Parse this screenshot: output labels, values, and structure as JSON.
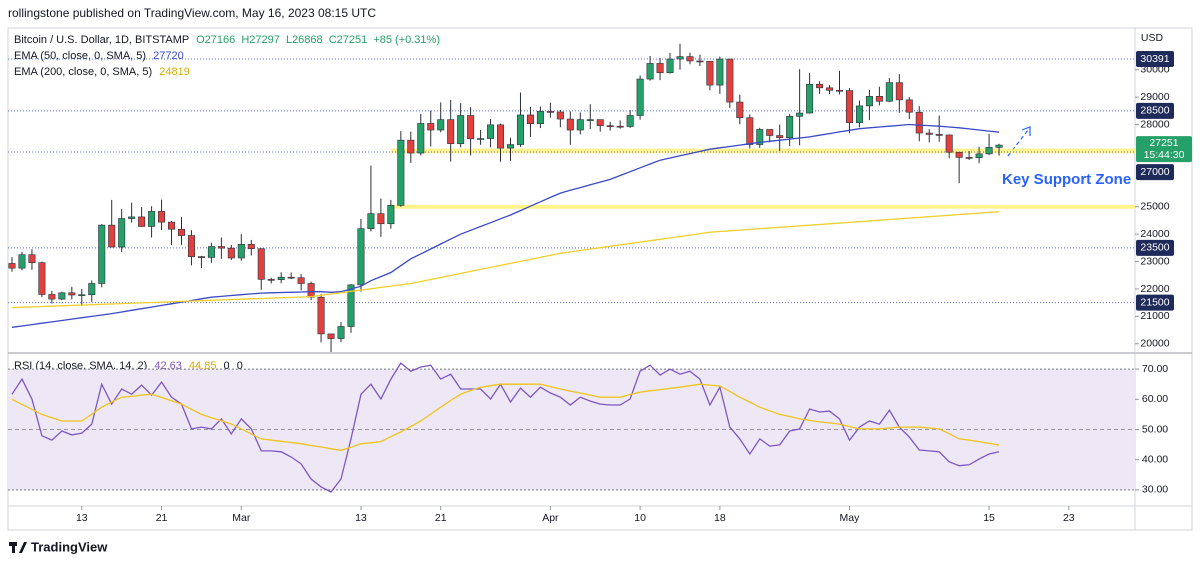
{
  "header": {
    "publisher": "rollingstone published on TradingView.com, May 16, 2023 08:15 UTC",
    "footer": "TradingView"
  },
  "chart_data": [
    {
      "type": "candlestick",
      "title": "Bitcoin / U.S. Dollar, 1D, BITSTAMP",
      "ohlc_labels": [
        "O27166",
        "H27297",
        "L26868",
        "C27251"
      ],
      "change": "+85 (+0.31%)",
      "currency": "USD",
      "annotation": "Key Support Zone",
      "time_to_close": "15:44:30",
      "up_color": "#26a069",
      "down_color": "#e0413f",
      "categories": [
        null,
        null,
        null,
        null,
        null,
        null,
        null,
        "13",
        null,
        null,
        null,
        null,
        null,
        null,
        null,
        "21",
        null,
        null,
        null,
        null,
        null,
        null,
        null,
        "Mar",
        null,
        null,
        null,
        null,
        null,
        null,
        null,
        null,
        null,
        null,
        null,
        "13",
        null,
        null,
        null,
        null,
        null,
        null,
        null,
        "21",
        null,
        null,
        null,
        null,
        null,
        null,
        null,
        null,
        null,
        null,
        "Apr",
        null,
        null,
        null,
        null,
        null,
        null,
        null,
        null,
        "10",
        null,
        null,
        null,
        null,
        null,
        null,
        null,
        "18",
        null,
        null,
        null,
        null,
        null,
        null,
        null,
        null,
        null,
        null,
        null,
        null,
        "May",
        null,
        null,
        null,
        null,
        null,
        null,
        null,
        null,
        null,
        null,
        null,
        null,
        null,
        "15",
        null,
        null,
        null,
        null,
        null,
        null,
        null,
        "23",
        null,
        null,
        null,
        null,
        null,
        null
      ],
      "open": [
        22930,
        22760,
        23250,
        22960,
        21800,
        21630,
        21860,
        21780,
        21790,
        22200,
        24330,
        23530,
        24570,
        24630,
        24280,
        24830,
        24440,
        24180,
        23950,
        23180,
        23150,
        23550,
        23490,
        23130,
        23630,
        23470,
        22350,
        22340,
        22430,
        22410,
        22200,
        21700,
        20360,
        20190,
        20630,
        22150,
        24200,
        24750,
        24380,
        25050,
        27430,
        26960,
        28040,
        27800,
        28180,
        27300,
        28330,
        27480,
        27490,
        27990,
        27140,
        27270,
        28350,
        28030,
        28480,
        28460,
        28200,
        27800,
        28180,
        28180,
        27960,
        27940,
        27930,
        28330,
        29660,
        30230,
        29890,
        30390,
        30480,
        30320,
        30310,
        29440,
        30390,
        28820,
        28250,
        27270,
        27820,
        27600,
        27520,
        28300,
        28420,
        29470,
        29340,
        29250,
        29240,
        28070,
        28680,
        29030,
        28850,
        29530,
        28900,
        28450,
        27690,
        27640,
        27620,
        26990,
        26800,
        26790,
        26930,
        27166,
        null,
        null,
        null,
        null,
        null,
        null,
        null,
        null,
        null,
        null,
        null,
        null,
        null
      ],
      "high": [
        23160,
        23350,
        23450,
        23000,
        21930,
        21900,
        22080,
        22000,
        22310,
        24370,
        25250,
        24920,
        25150,
        24990,
        25020,
        25260,
        24480,
        24620,
        24140,
        23210,
        23690,
        23880,
        23610,
        24000,
        23790,
        23480,
        22410,
        22610,
        22600,
        22540,
        22270,
        21820,
        20370,
        20790,
        22180,
        24560,
        26500,
        25300,
        25250,
        27760,
        27740,
        28390,
        28510,
        28810,
        28900,
        28780,
        28630,
        27800,
        28200,
        28030,
        27520,
        29170,
        28650,
        28660,
        28800,
        28530,
        28480,
        28440,
        28740,
        28180,
        28100,
        28150,
        28530,
        29790,
        30500,
        30430,
        30610,
        30950,
        30620,
        30550,
        30310,
        30480,
        30400,
        29090,
        28370,
        27880,
        27830,
        28000,
        28390,
        30020,
        29880,
        29580,
        29440,
        29960,
        29330,
        28880,
        29260,
        29380,
        29700,
        29840,
        29000,
        28670,
        27830,
        28330,
        27640,
        26990,
        27030,
        27190,
        27660,
        27297,
        null,
        null,
        null,
        null,
        null,
        null,
        null,
        null,
        null,
        null,
        null,
        null,
        null
      ],
      "low": [
        22630,
        22680,
        22700,
        21700,
        21470,
        21590,
        21620,
        21390,
        21530,
        22060,
        23520,
        23350,
        24420,
        24260,
        23880,
        24150,
        23600,
        23610,
        22860,
        22760,
        22960,
        23100,
        23060,
        23030,
        23220,
        21970,
        22200,
        22210,
        22360,
        21950,
        21590,
        20050,
        19570,
        20060,
        20400,
        21900,
        24100,
        23900,
        24200,
        25000,
        26600,
        26870,
        27200,
        27720,
        26650,
        27170,
        26870,
        27260,
        27170,
        26640,
        26680,
        27180,
        27550,
        27870,
        28250,
        27900,
        27260,
        27640,
        27840,
        27740,
        27780,
        27850,
        27880,
        28180,
        29600,
        29620,
        29860,
        30000,
        30200,
        30140,
        29250,
        29120,
        28600,
        28010,
        27130,
        27150,
        27350,
        27040,
        27220,
        27240,
        28400,
        29120,
        29110,
        29100,
        27680,
        27900,
        28160,
        28700,
        28820,
        28430,
        28200,
        27390,
        27350,
        27370,
        26770,
        25860,
        26710,
        26590,
        26880,
        26868,
        null,
        null,
        null,
        null,
        null,
        null,
        null,
        null,
        null,
        null,
        null,
        null,
        null
      ],
      "close": [
        22760,
        23250,
        22960,
        21800,
        21630,
        21860,
        21780,
        21790,
        22200,
        24330,
        23530,
        24570,
        24630,
        24280,
        24830,
        24440,
        24180,
        23950,
        23180,
        23150,
        23550,
        23490,
        23130,
        23630,
        23470,
        22350,
        22340,
        22430,
        22410,
        22200,
        21700,
        20360,
        20190,
        20630,
        22150,
        24200,
        24750,
        24380,
        25050,
        27430,
        26960,
        28040,
        27800,
        28180,
        27300,
        28330,
        27480,
        27490,
        27990,
        27140,
        27270,
        28350,
        28030,
        28480,
        28460,
        28200,
        27800,
        28180,
        28180,
        27960,
        27940,
        27930,
        28330,
        29660,
        30230,
        29890,
        30390,
        30480,
        30320,
        30310,
        29440,
        30390,
        28820,
        28250,
        27270,
        27820,
        27600,
        27520,
        28300,
        28420,
        29470,
        29340,
        29250,
        29240,
        28070,
        28680,
        29030,
        28850,
        29530,
        28900,
        28450,
        27690,
        27640,
        27620,
        26990,
        26800,
        26790,
        26930,
        27166,
        27251,
        null,
        null,
        null,
        null,
        null,
        null,
        null,
        null,
        null,
        null,
        null,
        null,
        null
      ],
      "series": [
        {
          "name": "EMA (50, close, 0, SMA, 5)",
          "color": "#3949c8",
          "values": [
            20600,
            20650,
            20700,
            20750,
            20800,
            20850,
            20900,
            20950,
            21000,
            21050,
            21100,
            21160,
            21220,
            21280,
            21340,
            21400,
            21460,
            21520,
            21580,
            21640,
            21700,
            21730,
            21760,
            21790,
            21820,
            21850,
            21860,
            21870,
            21880,
            21890,
            21900,
            21900,
            21880,
            21900,
            22000,
            22100,
            22300,
            22450,
            22600,
            22850,
            23100,
            23280,
            23460,
            23640,
            23820,
            24000,
            24140,
            24280,
            24420,
            24560,
            24700,
            24860,
            25020,
            25180,
            25340,
            25500,
            25600,
            25700,
            25800,
            25900,
            26000,
            26140,
            26280,
            26420,
            26560,
            26700,
            26780,
            26860,
            26940,
            27020,
            27100,
            27150,
            27200,
            27250,
            27300,
            27350,
            27390,
            27430,
            27470,
            27510,
            27550,
            27610,
            27670,
            27730,
            27790,
            27850,
            27880,
            27910,
            27940,
            27970,
            28000,
            27980,
            27960,
            27940,
            27910,
            27880,
            27840,
            27800,
            27760,
            27720,
            null,
            null,
            null,
            null,
            null,
            null,
            null,
            null,
            null,
            null,
            null,
            null,
            null
          ]
        },
        {
          "name": "EMA (200, close, 0, SMA, 5)",
          "color": "#f0d02a",
          "values": [
            21320,
            21333,
            21347,
            21360,
            21373,
            21387,
            21400,
            21413,
            21427,
            21440,
            21453,
            21467,
            21480,
            21493,
            21507,
            21520,
            21533,
            21547,
            21560,
            21573,
            21587,
            21600,
            21613,
            21627,
            21640,
            21653,
            21667,
            21680,
            21693,
            21707,
            21720,
            21768,
            21816,
            21864,
            21912,
            21960,
            22008,
            22056,
            22104,
            22152,
            22200,
            22273,
            22347,
            22420,
            22493,
            22567,
            22640,
            22713,
            22787,
            22860,
            22933,
            23007,
            23080,
            23153,
            23227,
            23300,
            23351,
            23403,
            23454,
            23505,
            23557,
            23608,
            23659,
            23711,
            23762,
            23813,
            23865,
            23916,
            23967,
            24019,
            24070,
            24096,
            24121,
            24147,
            24173,
            24199,
            24224,
            24250,
            24276,
            24301,
            24327,
            24353,
            24379,
            24404,
            24430,
            24456,
            24482,
            24508,
            24534,
            24560,
            24586,
            24612,
            24638,
            24664,
            24690,
            24716,
            24742,
            24768,
            24794,
            24819,
            null,
            null,
            null,
            null,
            null,
            null,
            null,
            null,
            null,
            null,
            null,
            null,
            null
          ]
        }
      ],
      "ylim": [
        19700,
        31450
      ],
      "yticks": [
        20000,
        21000,
        22000,
        23000,
        24000,
        25000,
        28000,
        29000,
        30000
      ],
      "levels": [
        30391,
        28500,
        27000,
        23500,
        21500
      ],
      "zones": [
        [
          26950,
          27120
        ],
        [
          24930,
          25070
        ]
      ]
    },
    {
      "type": "line",
      "title": "RSI (14, close, SMA, 14, 2)",
      "extra_values": [
        0,
        0
      ],
      "series": [
        {
          "color": "#7e57c2",
          "values": [
            61.7,
            66.7,
            60.1,
            47.9,
            46.5,
            49.5,
            48.2,
            48.8,
            51.8,
            65.0,
            58.4,
            63.4,
            61.7,
            64.7,
            61.4,
            65.7,
            60.7,
            58.4,
            50.2,
            50.8,
            50.2,
            53.5,
            48.5,
            53.5,
            50.2,
            42.9,
            42.9,
            42.6,
            40.9,
            38.6,
            33.6,
            31.0,
            29.3,
            33.6,
            46.9,
            61.7,
            65.0,
            60.1,
            66.7,
            72.0,
            69.3,
            70.7,
            71.3,
            66.7,
            68.3,
            63.4,
            63.4,
            63.4,
            60.1,
            65.0,
            59.1,
            63.7,
            60.7,
            64.0,
            62.1,
            60.7,
            58.1,
            60.7,
            59.4,
            58.4,
            58.1,
            58.1,
            60.1,
            69.3,
            71.3,
            68.0,
            70.0,
            68.3,
            69.3,
            66.7,
            58.1,
            64.0,
            50.8,
            46.9,
            41.9,
            46.9,
            44.5,
            44.9,
            49.5,
            50.2,
            56.8,
            55.8,
            56.1,
            53.5,
            46.5,
            50.8,
            52.8,
            51.8,
            56.4,
            50.8,
            47.5,
            43.2,
            42.9,
            42.6,
            39.3,
            38.0,
            38.3,
            40.2,
            41.9,
            42.63,
            null,
            null,
            null,
            null,
            null,
            null,
            null,
            null,
            null,
            null,
            null,
            null,
            null
          ]
        },
        {
          "color": "#f0c419",
          "values": [
            60.0,
            58.3,
            56.7,
            55.0,
            53.9,
            52.8,
            52.8,
            52.8,
            55.1,
            57.4,
            59.1,
            60.7,
            61.0,
            61.4,
            61.7,
            60.6,
            59.5,
            58.4,
            56.7,
            55.0,
            53.9,
            52.9,
            51.8,
            50.2,
            48.5,
            46.9,
            46.5,
            46.1,
            45.7,
            45.3,
            44.7,
            44.2,
            43.6,
            43.1,
            44.1,
            45.3,
            45.6,
            46.0,
            47.6,
            49.2,
            51.0,
            52.8,
            55.1,
            57.4,
            59.6,
            61.7,
            62.9,
            64.0,
            64.5,
            65.0,
            65.0,
            65.0,
            65.0,
            65.0,
            64.2,
            63.4,
            62.7,
            62.1,
            61.4,
            60.7,
            60.7,
            60.7,
            61.6,
            62.4,
            62.8,
            63.2,
            63.6,
            64.0,
            64.5,
            65.0,
            64.7,
            64.4,
            62.6,
            60.7,
            59.1,
            57.4,
            56.2,
            55.0,
            54.3,
            53.5,
            53.0,
            52.5,
            52.2,
            51.8,
            51.0,
            50.2,
            50.2,
            50.2,
            50.5,
            50.8,
            50.8,
            50.8,
            50.5,
            50.2,
            48.6,
            46.9,
            46.5,
            46.0,
            45.4,
            44.85,
            null,
            null,
            null,
            null,
            null,
            null,
            null,
            null,
            null,
            null,
            null,
            null,
            null
          ]
        }
      ],
      "ylim": [
        25,
        75
      ],
      "yticks": [
        {
          "value": 30,
          "label": "30.00"
        },
        {
          "value": 40,
          "label": "40.00"
        },
        {
          "value": 50,
          "label": "50.00"
        },
        {
          "value": 60,
          "label": "60.00"
        },
        {
          "value": 70,
          "label": "70.00"
        }
      ],
      "band": [
        30,
        70
      ],
      "midline": 50
    }
  ]
}
